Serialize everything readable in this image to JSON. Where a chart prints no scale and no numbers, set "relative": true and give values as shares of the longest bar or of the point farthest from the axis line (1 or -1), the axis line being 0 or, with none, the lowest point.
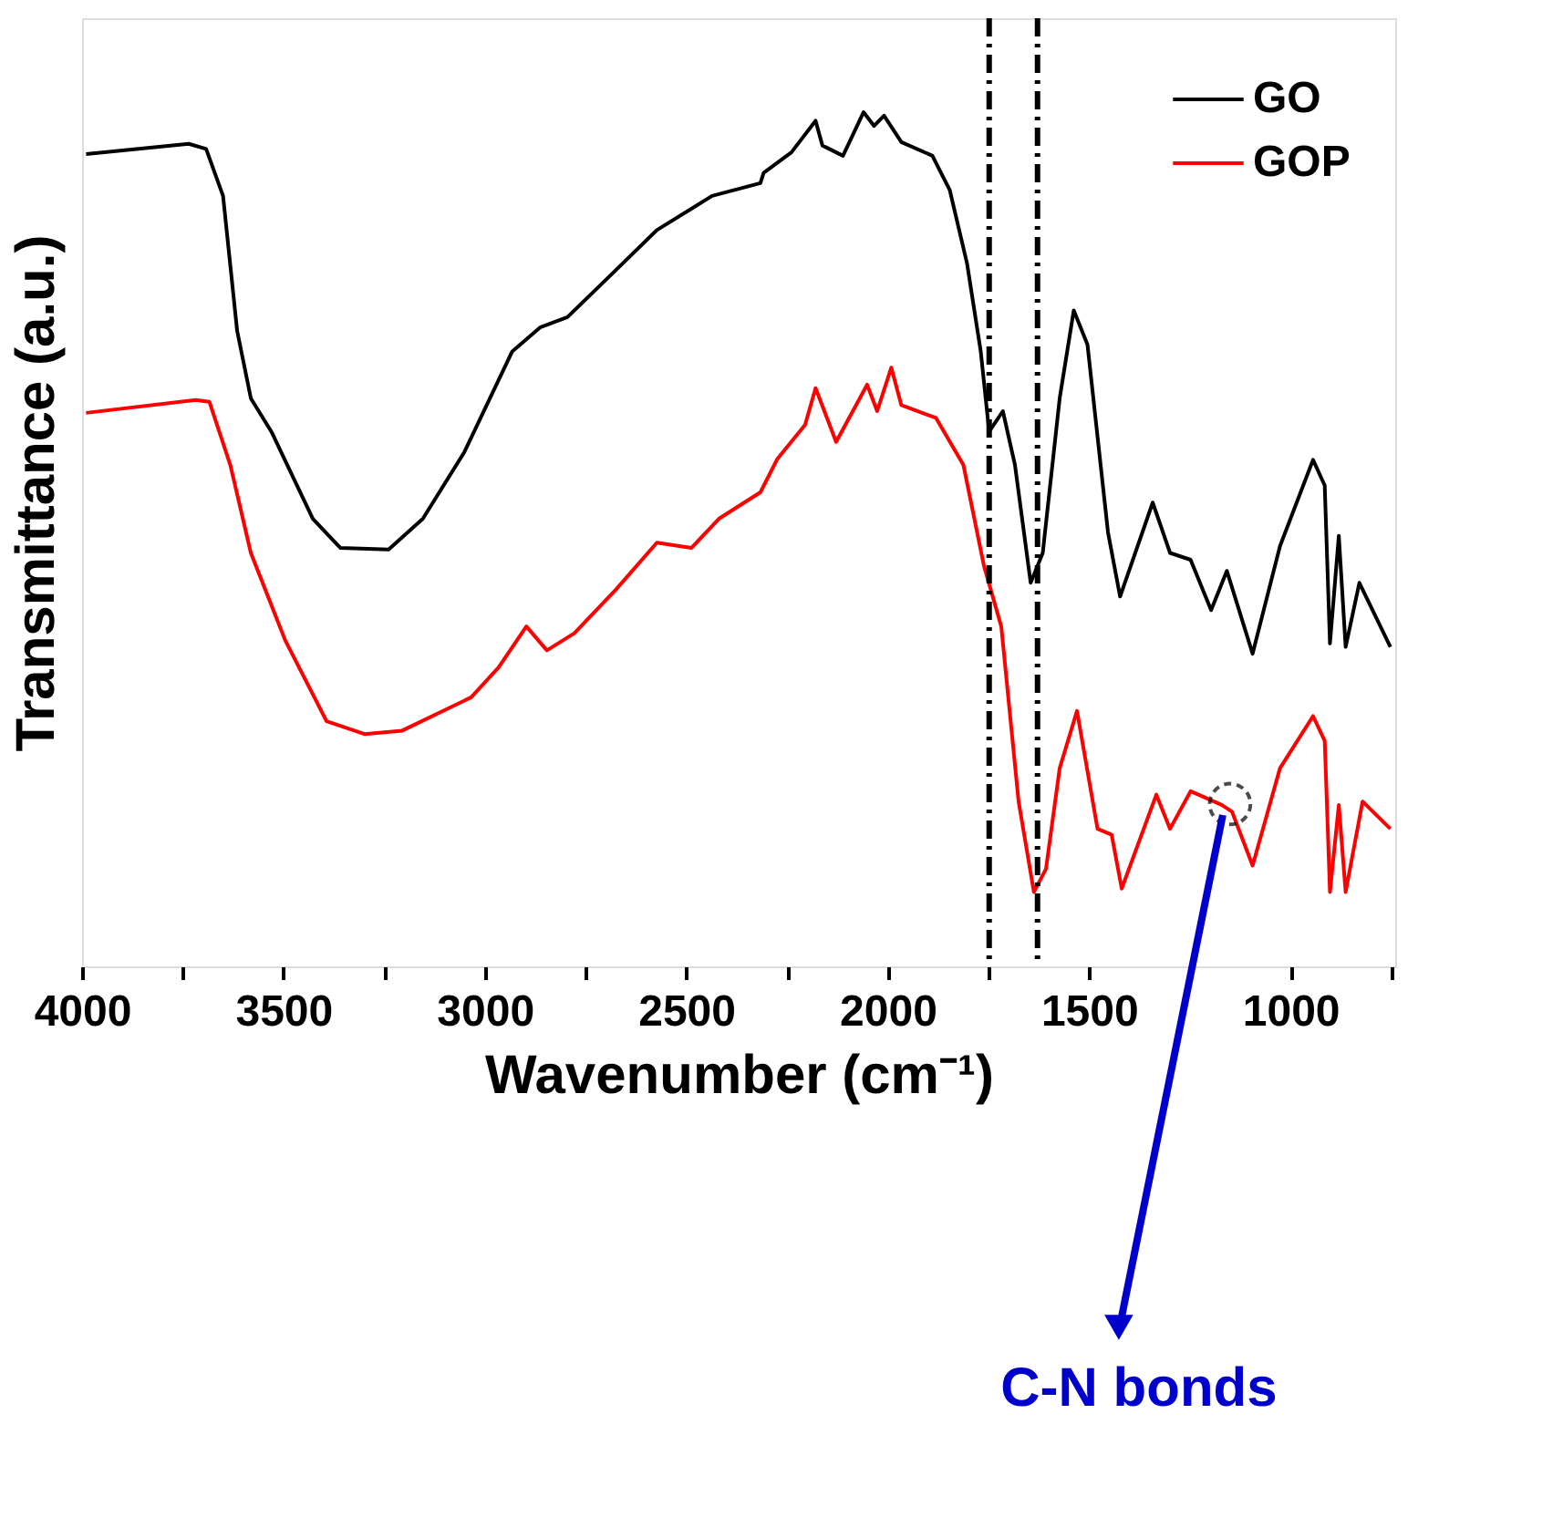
{
  "chart_data": {
    "type": "line",
    "relative": true,
    "xlabel": "Wavenumber (cm⁻¹)",
    "ylabel": "Transmittance (a.u.)",
    "xlim": [
      4000,
      740
    ],
    "xticks": [
      4000,
      {
        "value": 3750,
        "label": null
      },
      3500,
      {
        "value": 3250,
        "label": null
      },
      3000,
      {
        "value": 2750,
        "label": null
      },
      2500,
      {
        "value": 2250,
        "label": null
      },
      2000,
      {
        "value": 1750,
        "label": null
      },
      1500,
      {
        "value": 1250,
        "label": null
      },
      1000,
      {
        "value": 750,
        "label": null
      }
    ],
    "legend": "top right",
    "grid": false,
    "marker": "none",
    "line_style": "solid",
    "series": [
      {
        "name": "GO",
        "color": "#000000",
        "x": [
          3990,
          3735,
          3692,
          3650,
          3615,
          3581,
          3530,
          3427,
          3359,
          3239,
          3154,
          3051,
          2932,
          2863,
          2795,
          2675,
          2573,
          2436,
          2316,
          2308,
          2239,
          2179,
          2162,
          2111,
          2060,
          2034,
          2009,
          1966,
          1889,
          1846,
          1803,
          1769,
          1748,
          1714,
          1684,
          1645,
          1615,
          1573,
          1538,
          1504,
          1453,
          1423,
          1342,
          1299,
          1248,
          1197,
          1158,
          1094,
          1026,
          944,
          915,
          902,
          880,
          863,
          829,
          752
        ],
        "values": [
          0.951,
          0.963,
          0.957,
          0.902,
          0.744,
          0.665,
          0.626,
          0.524,
          0.49,
          0.488,
          0.524,
          0.602,
          0.72,
          0.748,
          0.76,
          0.815,
          0.862,
          0.902,
          0.917,
          0.929,
          0.953,
          0.99,
          0.961,
          0.949,
          1.0,
          0.984,
          0.996,
          0.965,
          0.949,
          0.909,
          0.823,
          0.72,
          0.626,
          0.65,
          0.587,
          0.449,
          0.484,
          0.665,
          0.768,
          0.728,
          0.508,
          0.433,
          0.543,
          0.484,
          0.476,
          0.417,
          0.463,
          0.366,
          0.492,
          0.593,
          0.563,
          0.378,
          0.504,
          0.374,
          0.449,
          0.374
        ]
      },
      {
        "name": "GOP",
        "color": "#ff0000",
        "x": [
          3990,
          3718,
          3684,
          3632,
          3581,
          3496,
          3393,
          3299,
          3205,
          3034,
          2966,
          2897,
          2846,
          2778,
          2675,
          2573,
          2487,
          2419,
          2316,
          2274,
          2205,
          2179,
          2128,
          2051,
          2026,
          1991,
          1966,
          1880,
          1812,
          1761,
          1718,
          1675,
          1637,
          1607,
          1573,
          1530,
          1479,
          1444,
          1419,
          1333,
          1299,
          1248,
          1171,
          1145,
          1094,
          1026,
          944,
          915,
          902,
          880,
          863,
          821,
          752
        ],
        "values": [
          0.648,
          0.663,
          0.661,
          0.587,
          0.484,
          0.382,
          0.287,
          0.272,
          0.276,
          0.315,
          0.35,
          0.398,
          0.37,
          0.39,
          0.441,
          0.496,
          0.49,
          0.524,
          0.555,
          0.594,
          0.634,
          0.677,
          0.614,
          0.681,
          0.65,
          0.701,
          0.657,
          0.642,
          0.587,
          0.469,
          0.398,
          0.193,
          0.087,
          0.114,
          0.232,
          0.299,
          0.161,
          0.154,
          0.091,
          0.201,
          0.161,
          0.205,
          0.189,
          0.181,
          0.118,
          0.232,
          0.293,
          0.264,
          0.087,
          0.189,
          0.087,
          0.193,
          0.161
        ]
      }
    ],
    "ref_lines": [
      {
        "axis": "x",
        "value": 1748,
        "line_style": "dashdot",
        "color": "#000000"
      },
      {
        "axis": "x",
        "value": 1628,
        "line_style": "dashdot",
        "color": "#000000"
      }
    ],
    "annotations": [
      {
        "text": "C-N bonds",
        "x": 1150,
        "y": 0.19
      }
    ]
  }
}
